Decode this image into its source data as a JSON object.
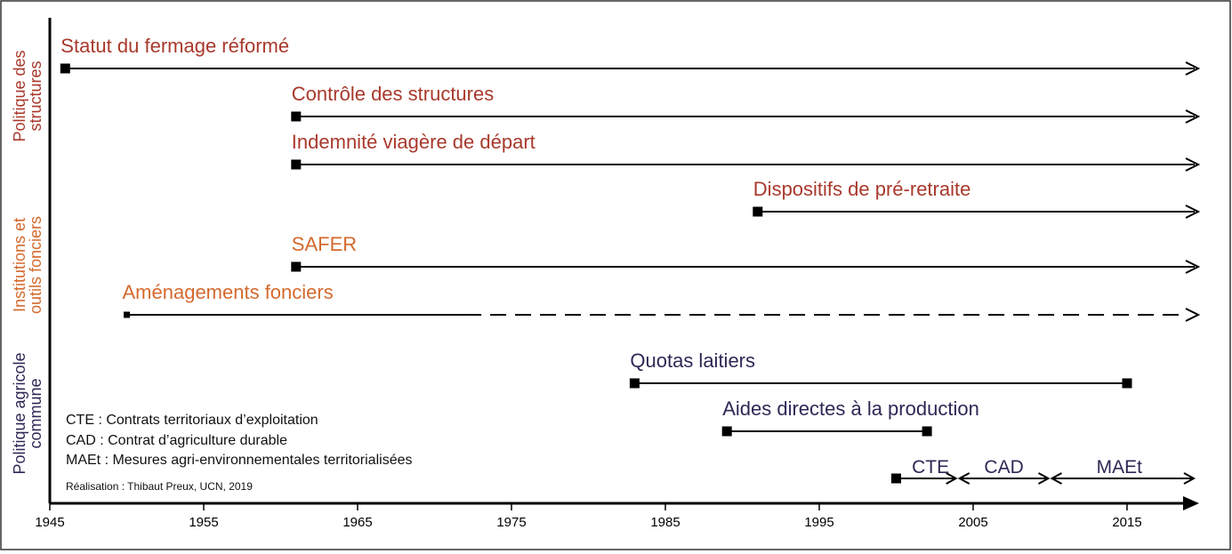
{
  "colors": {
    "structures": "#a8392c",
    "foncier": "#d46a2e",
    "pac": "#2e2855",
    "axis": "#000000"
  },
  "chart_data": {
    "type": "timeline",
    "xlim": [
      1945,
      2019
    ],
    "ticks": [
      "1945",
      "1955",
      "1965",
      "1975",
      "1985",
      "1995",
      "2005",
      "2015"
    ],
    "categories": [
      {
        "id": "structures",
        "label_lines": [
          "Politique des",
          "structures"
        ]
      },
      {
        "id": "foncier",
        "label_lines": [
          "Institutions et",
          "outils fonciers"
        ]
      },
      {
        "id": "pac",
        "label_lines": [
          "Politique agricole",
          "commune"
        ]
      }
    ],
    "events": [
      {
        "label": "Statut du fermage réformé",
        "category": "structures",
        "start": 1946,
        "end": 2019,
        "end_style": "arrow",
        "line_style": "solid"
      },
      {
        "label": "Contrôle des structures",
        "category": "structures",
        "start": 1961,
        "end": 2019,
        "end_style": "arrow",
        "line_style": "solid"
      },
      {
        "label": "Indemnité viagère de départ",
        "category": "structures",
        "start": 1961,
        "end": 2019,
        "end_style": "arrow",
        "line_style": "solid"
      },
      {
        "label": "Dispositifs de pré-retraite",
        "category": "structures",
        "start": 1991,
        "end": 2019,
        "end_style": "arrow",
        "line_style": "solid"
      },
      {
        "label": "SAFER",
        "category": "foncier",
        "start": 1961,
        "end": 2019,
        "end_style": "arrow",
        "line_style": "solid"
      },
      {
        "label": "Aménagements fonciers",
        "category": "foncier",
        "start": 1950,
        "end": 2019,
        "end_style": "arrow",
        "line_style": "solid-then-dashed",
        "dash_from": 1972
      },
      {
        "label": "Quotas laitiers",
        "category": "pac",
        "start": 1983,
        "end": 2015,
        "end_style": "square",
        "line_style": "solid"
      },
      {
        "label": "Aides directes à la production",
        "category": "pac",
        "start": 1989,
        "end": 2002,
        "end_style": "square",
        "line_style": "solid"
      }
    ],
    "periods": [
      {
        "label": "CTE",
        "start": 2000,
        "end": 2004
      },
      {
        "label": "CAD",
        "start": 2004,
        "end": 2010
      },
      {
        "label": "MAEt",
        "start": 2010,
        "end": 2019
      }
    ]
  },
  "legend": {
    "lines": [
      "CTE : Contrats territoriaux d’exploitation",
      "CAD : Contrat d’agriculture durable",
      "MAEt : Mesures agri-environnementales territorialisées"
    ],
    "credit": "Réalisation : Thibaut Preux, UCN, 2019"
  }
}
